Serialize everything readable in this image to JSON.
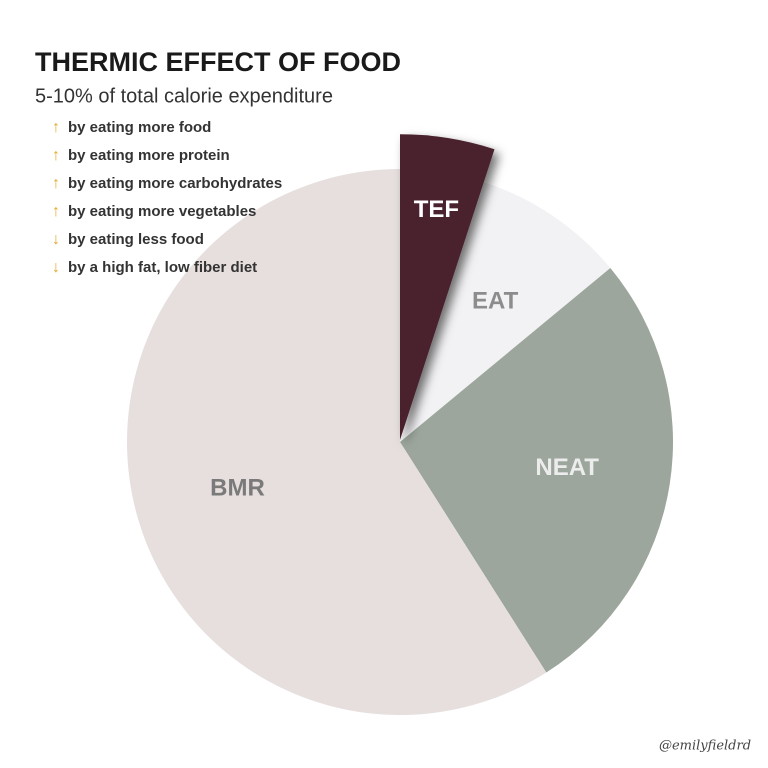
{
  "chart_data": {
    "type": "pie",
    "title": "THERMIC EFFECT OF FOOD",
    "subtitle": "5-10% of total calorie expenditure",
    "categories": [
      "TEF",
      "EAT",
      "NEAT",
      "BMR"
    ],
    "values": [
      5,
      9,
      27,
      59
    ],
    "colors": [
      "#4a232e",
      "#f2f2f4",
      "#9ca69c",
      "#e6dfde"
    ],
    "label_colors": [
      "#ffffff",
      "#8c8c8c",
      "#ececec",
      "#7a7a7a"
    ],
    "exploded": [
      true,
      false,
      false,
      false
    ],
    "notes": [
      {
        "arrow": "↑",
        "text": "by eating more food"
      },
      {
        "arrow": "↑",
        "text": "by eating more protein"
      },
      {
        "arrow": "↑",
        "text": "by eating more carbohydrates"
      },
      {
        "arrow": "↑",
        "text": "by eating more vegetables"
      },
      {
        "arrow": "↓",
        "text": "by eating less food"
      },
      {
        "arrow": "↓",
        "text": "by a high fat, low fiber diet"
      }
    ],
    "watermark": "@emilyfieldrd"
  }
}
